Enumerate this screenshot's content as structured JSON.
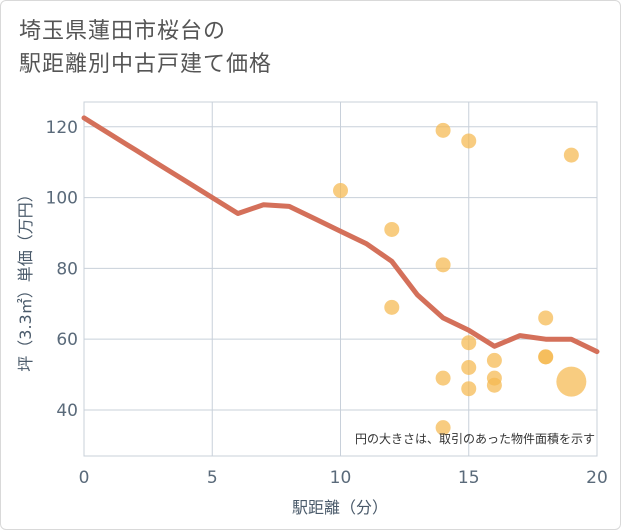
{
  "title_lines": [
    "埼玉県蓮田市桜台の",
    "駅距離別中古戸建て価格"
  ],
  "chart_data": {
    "type": "scatter",
    "title": "埼玉県蓮田市桜台の駅距離別中古戸建て価格",
    "xlabel": "駅距離（分）",
    "ylabel": "坪（3.3㎡）単価（万円）",
    "xlim": [
      0,
      20
    ],
    "ylim": [
      27,
      127
    ],
    "xticks": [
      0,
      5,
      10,
      15,
      20
    ],
    "yticks": [
      40,
      60,
      80,
      100,
      120
    ],
    "grid": true,
    "note": "円の大きさは、取引のあった物件面積を示す",
    "colors": {
      "point": "#f5b94f",
      "line": "#d4705a",
      "grid": "#c8d0da"
    },
    "points": [
      {
        "x": 10,
        "y": 102,
        "size": 1
      },
      {
        "x": 12,
        "y": 91,
        "size": 1
      },
      {
        "x": 12,
        "y": 69,
        "size": 1
      },
      {
        "x": 14,
        "y": 119,
        "size": 1
      },
      {
        "x": 14,
        "y": 81,
        "size": 1
      },
      {
        "x": 14,
        "y": 49,
        "size": 1
      },
      {
        "x": 14,
        "y": 35,
        "size": 1
      },
      {
        "x": 15,
        "y": 116,
        "size": 1
      },
      {
        "x": 15,
        "y": 59,
        "size": 1
      },
      {
        "x": 15,
        "y": 52,
        "size": 1
      },
      {
        "x": 15,
        "y": 46,
        "size": 1
      },
      {
        "x": 16,
        "y": 54,
        "size": 1
      },
      {
        "x": 16,
        "y": 49,
        "size": 1
      },
      {
        "x": 16,
        "y": 47,
        "size": 1
      },
      {
        "x": 18,
        "y": 66,
        "size": 1
      },
      {
        "x": 18,
        "y": 55,
        "size": 1
      },
      {
        "x": 18,
        "y": 55,
        "size": 1
      },
      {
        "x": 19,
        "y": 112,
        "size": 1
      },
      {
        "x": 19,
        "y": 48,
        "size": 4
      }
    ],
    "trend_line": {
      "x": [
        0,
        1,
        2,
        3,
        4,
        5,
        6,
        7,
        8,
        9,
        10,
        11,
        12,
        13,
        14,
        15,
        16,
        17,
        18,
        19,
        20
      ],
      "y": [
        122.5,
        118,
        113.5,
        109,
        104.5,
        100,
        95.5,
        98,
        97.5,
        94,
        90.5,
        87,
        82,
        72.5,
        66,
        62.5,
        58,
        61,
        60,
        60,
        56.5
      ]
    }
  }
}
